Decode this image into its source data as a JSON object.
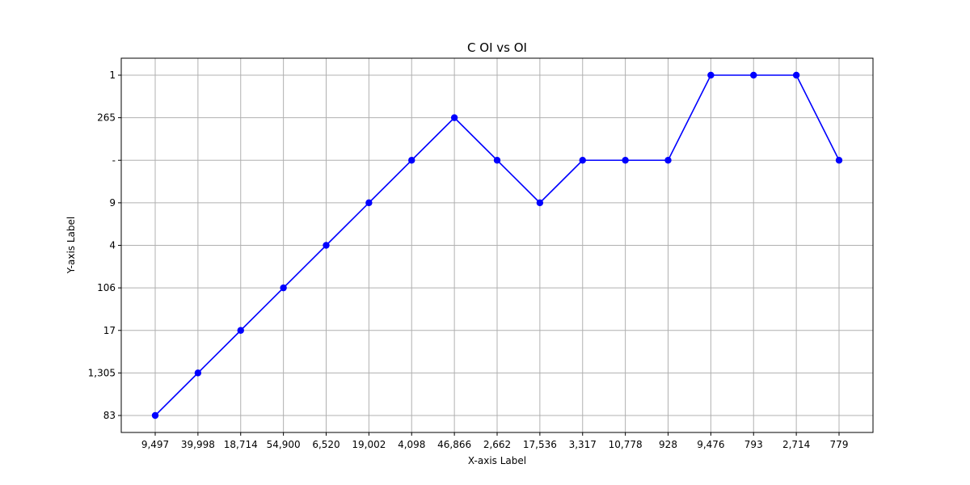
{
  "chart_data": {
    "type": "line",
    "title": "C OI vs OI",
    "xlabel": "X-axis Label",
    "ylabel": "Y-axis Label",
    "categories": [
      "9,497",
      "39,998",
      "18,714",
      "54,900",
      "6,520",
      "19,002",
      "4,098",
      "46,866",
      "2,662",
      "17,536",
      "3,317",
      "10,778",
      "928",
      "9,476",
      "793",
      "2,714",
      "779"
    ],
    "y_categories": [
      "83",
      "1,305",
      "17",
      "106",
      "4",
      "9",
      "-",
      "265",
      "1"
    ],
    "series": [
      {
        "values": [
          "83",
          "1,305",
          "17",
          "106",
          "4",
          "9",
          "-",
          "265",
          "-",
          "9",
          "-",
          "-",
          "-",
          "1",
          "1",
          "1",
          "-"
        ]
      }
    ],
    "grid": true,
    "colors": {
      "line": "#0000ff",
      "marker": "#0000ff",
      "grid": "#b0b0b0",
      "axes": "#000000"
    }
  }
}
